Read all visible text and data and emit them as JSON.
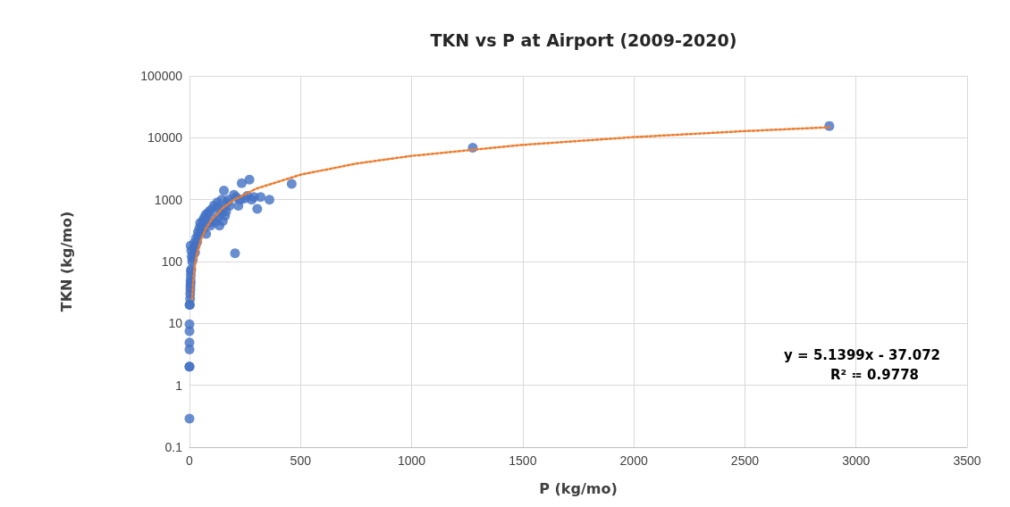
{
  "chart_data": {
    "type": "scatter",
    "title": "TKN vs P at Airport (2009-2020)",
    "xlabel": "P (kg/mo)",
    "ylabel": "TKN (kg/mo)",
    "log": "y",
    "grid": true,
    "marker": "circle",
    "xlim": [
      0,
      3500
    ],
    "xticks": [
      0,
      500,
      1000,
      1500,
      2000,
      2500,
      3000,
      3500
    ],
    "ylim": [
      0.1,
      100000
    ],
    "yticks": [
      0.1,
      1,
      10,
      100,
      1000,
      10000,
      100000
    ],
    "annotations": [
      "y = 5.1399x - 37.072",
      "R² = 0.9778"
    ],
    "series": [
      {
        "color": "#4472c4",
        "x": [
          0,
          0,
          0,
          0,
          0,
          0,
          0,
          2,
          3,
          3,
          4,
          4,
          5,
          5,
          6,
          6,
          8,
          0,
          5,
          8,
          10,
          12,
          15,
          18,
          20,
          22,
          25,
          28,
          30,
          35,
          38,
          40,
          45,
          48,
          50,
          55,
          60,
          62,
          65,
          72,
          75,
          80,
          88,
          90,
          95,
          100,
          105,
          110,
          115,
          125,
          128,
          130,
          135,
          140,
          145,
          150,
          150,
          155,
          160,
          165,
          170,
          175,
          180,
          200,
          205,
          210,
          220,
          230,
          235,
          250,
          260,
          270,
          280,
          290,
          305,
          320,
          360,
          460,
          1275,
          2880
        ],
        "values": [
          0.29,
          2.0,
          2.0,
          3.8,
          4.9,
          7.5,
          9.7,
          20,
          25,
          30,
          35,
          40,
          45,
          50,
          60,
          70,
          75,
          20,
          180,
          150,
          120,
          100,
          110,
          130,
          160,
          200,
          140,
          180,
          240,
          210,
          300,
          260,
          350,
          420,
          300,
          380,
          450,
          330,
          500,
          560,
          280,
          600,
          420,
          650,
          380,
          700,
          480,
          800,
          430,
          900,
          520,
          750,
          380,
          600,
          1000,
          700,
          450,
          1400,
          550,
          650,
          900,
          1000,
          800,
          1200,
          136,
          1100,
          800,
          1000,
          1850,
          1050,
          1150,
          2100,
          1000,
          1100,
          710,
          1100,
          1000,
          1800,
          6900,
          15500
        ]
      },
      {
        "type": "line",
        "color": "#ed7d31",
        "line_style": "dotted",
        "marker": "none",
        "x": [
          12,
          15,
          20,
          30,
          50,
          75,
          100,
          150,
          200,
          300,
          500,
          750,
          1000,
          1500,
          2000,
          2500,
          2880
        ],
        "values": [
          24.6,
          40.0,
          65.7,
          117.1,
          220,
          348.4,
          476.9,
          733.9,
          991,
          1505,
          2533,
          3818,
          5103,
          7673,
          10243,
          12813,
          14766
        ]
      }
    ]
  }
}
